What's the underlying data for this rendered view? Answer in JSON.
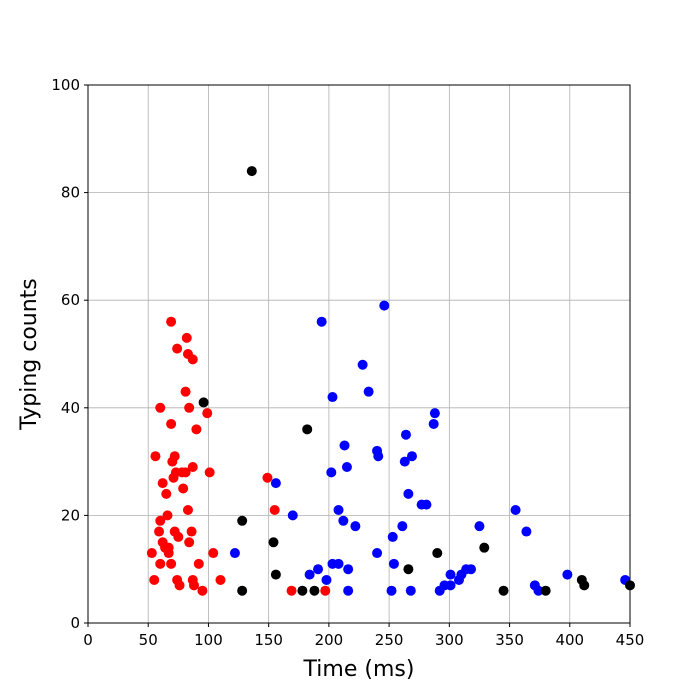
{
  "chart_data": {
    "type": "scatter",
    "xlabel": "Time (ms)",
    "ylabel": "Typing counts",
    "xlim": [
      0,
      450
    ],
    "ylim": [
      0,
      100
    ],
    "xticks": [
      0,
      50,
      100,
      150,
      200,
      250,
      300,
      350,
      400,
      450
    ],
    "yticks": [
      0,
      20,
      40,
      60,
      80,
      100
    ],
    "grid": true,
    "series": [
      {
        "color": "#ff0000",
        "x": [
          53,
          55,
          56,
          60,
          59,
          60,
          60,
          62,
          62,
          64,
          65,
          66,
          67,
          67,
          69,
          69,
          69,
          70,
          71,
          72,
          72,
          73,
          74,
          74,
          75,
          76,
          78,
          79,
          81,
          81,
          82,
          83,
          83,
          84,
          84,
          86,
          87,
          87,
          87,
          88,
          90,
          92,
          95,
          99,
          101,
          104,
          110,
          149,
          155,
          169,
          197
        ],
        "values": [
          13,
          8,
          31,
          40,
          17,
          19,
          11,
          26,
          15,
          14,
          24,
          20,
          14,
          13,
          56,
          37,
          11,
          30,
          27,
          31,
          17,
          28,
          51,
          8,
          16,
          7,
          28,
          25,
          28,
          43,
          53,
          50,
          21,
          15,
          40,
          17,
          49,
          29,
          8,
          7,
          36,
          11,
          6,
          39,
          28,
          13,
          8,
          27,
          21,
          6,
          6
        ]
      },
      {
        "color": "#0000ff",
        "x": [
          122,
          156,
          170,
          184,
          191,
          194,
          198,
          202,
          203,
          203,
          208,
          208,
          212,
          213,
          215,
          216,
          216,
          222,
          228,
          233,
          240,
          240,
          241,
          246,
          252,
          253,
          254,
          261,
          263,
          264,
          266,
          268,
          269,
          277,
          281,
          287,
          288,
          292,
          296,
          301,
          301,
          308,
          310,
          314,
          318,
          325,
          355,
          364,
          371,
          374,
          398,
          446
        ],
        "values": [
          13,
          26,
          20,
          9,
          10,
          56,
          8,
          28,
          42,
          11,
          21,
          11,
          19,
          33,
          29,
          10,
          6,
          18,
          48,
          43,
          13,
          32,
          31,
          59,
          6,
          16,
          11,
          18,
          30,
          35,
          24,
          6,
          31,
          22,
          22,
          37,
          39,
          6,
          7,
          9,
          7,
          8,
          9,
          10,
          10,
          18,
          21,
          17,
          7,
          6,
          9,
          8
        ]
      },
      {
        "color": "#000000",
        "x": [
          136,
          96,
          128,
          128,
          154,
          156,
          178,
          182,
          188,
          266,
          290,
          329,
          345,
          380,
          410,
          412,
          450
        ],
        "values": [
          84,
          41,
          19,
          6,
          15,
          9,
          6,
          36,
          6,
          10,
          13,
          14,
          6,
          6,
          8,
          7,
          7
        ]
      }
    ]
  }
}
